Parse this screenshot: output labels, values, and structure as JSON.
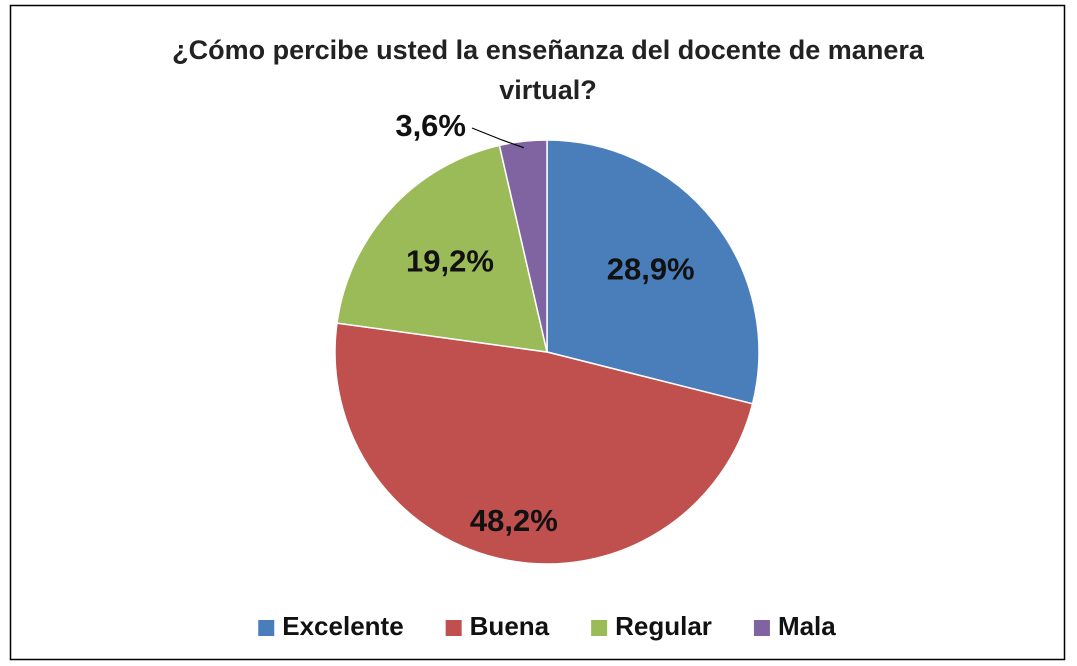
{
  "chart_data": {
    "type": "pie",
    "title": "¿Cómo percibe usted la enseñanza del docente de manera virtual?",
    "categories": [
      "Excelente",
      "Buena",
      "Regular",
      "Mala"
    ],
    "values": [
      28.9,
      48.2,
      19.2,
      3.6
    ],
    "value_labels": [
      "28,9%",
      "48,2%",
      "19,2%",
      "3,6%"
    ],
    "colors": [
      "#4a7ebb",
      "#c0504d",
      "#9bbb59",
      "#8064a2"
    ],
    "legend": "bottom"
  }
}
